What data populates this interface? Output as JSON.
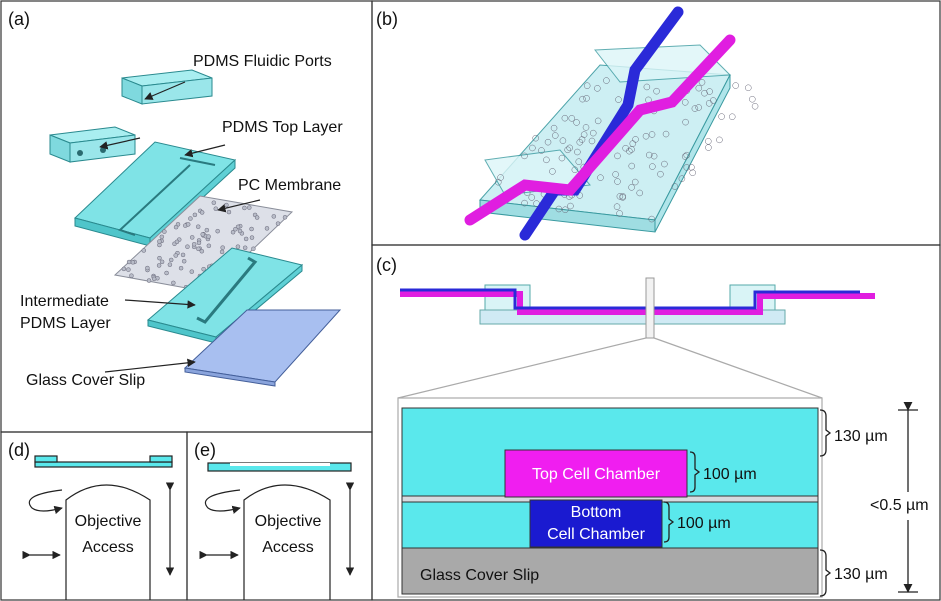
{
  "panel_a": {
    "label": "(a)",
    "fluidic_ports": "PDMS Fluidic Ports",
    "top_layer": "PDMS Top Layer",
    "membrane": "PC Membrane",
    "intermediate_layer": [
      "Intermediate",
      "PDMS Layer"
    ],
    "cover_slip": "Glass Cover Slip"
  },
  "panel_b": {
    "label": "(b)"
  },
  "panel_c": {
    "label": "(c)",
    "top_thickness": "130 µm",
    "top_chamber": "Top Cell Chamber",
    "top_chamber_height": "100 µm",
    "bottom_chamber": [
      "Bottom",
      "Cell Chamber"
    ],
    "bottom_chamber_height": "100 µm",
    "membrane_thickness": "<0.5 µm",
    "cover_slip": "Glass Cover Slip",
    "slip_thickness": "130 µm"
  },
  "panel_d": {
    "label": "(d)",
    "objective": [
      "Objective",
      "Access"
    ]
  },
  "panel_e": {
    "label": "(e)",
    "objective": [
      "Objective",
      "Access"
    ]
  }
}
